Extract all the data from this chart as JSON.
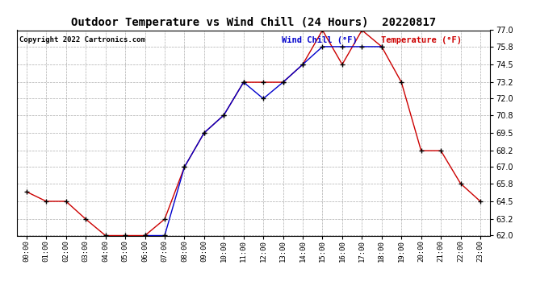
{
  "title": "Outdoor Temperature vs Wind Chill (24 Hours)  20220817",
  "copyright": "Copyright 2022 Cartronics.com",
  "legend_wind_chill": "Wind Chill (°F)",
  "legend_temperature": "Temperature (°F)",
  "hours": [
    "00:00",
    "01:00",
    "02:00",
    "03:00",
    "04:00",
    "05:00",
    "06:00",
    "07:00",
    "08:00",
    "09:00",
    "10:00",
    "11:00",
    "12:00",
    "13:00",
    "14:00",
    "15:00",
    "16:00",
    "17:00",
    "18:00",
    "19:00",
    "20:00",
    "21:00",
    "22:00",
    "23:00"
  ],
  "temperature": [
    65.2,
    64.5,
    64.5,
    63.2,
    62.0,
    62.0,
    62.0,
    63.2,
    67.0,
    69.5,
    70.8,
    73.2,
    73.2,
    73.2,
    74.5,
    77.0,
    74.5,
    77.0,
    75.8,
    73.2,
    68.2,
    68.2,
    65.8,
    64.5
  ],
  "wind_chill": [
    null,
    null,
    null,
    null,
    null,
    null,
    62.0,
    62.0,
    67.0,
    69.5,
    70.8,
    73.2,
    72.0,
    73.2,
    74.5,
    75.8,
    75.8,
    75.8,
    75.8,
    null,
    null,
    null,
    null,
    null
  ],
  "ylim": [
    62.0,
    77.0
  ],
  "yticks": [
    62.0,
    63.2,
    64.5,
    65.8,
    67.0,
    68.2,
    69.5,
    70.8,
    72.0,
    73.2,
    74.5,
    75.8,
    77.0
  ],
  "bg_color": "#ffffff",
  "grid_color": "#999999",
  "temp_color": "#cc0000",
  "wind_chill_color": "#0000cc",
  "title_color": "#000000",
  "copyright_color": "#000000",
  "legend_wind_chill_color": "#0000cc",
  "legend_temp_color": "#cc0000"
}
